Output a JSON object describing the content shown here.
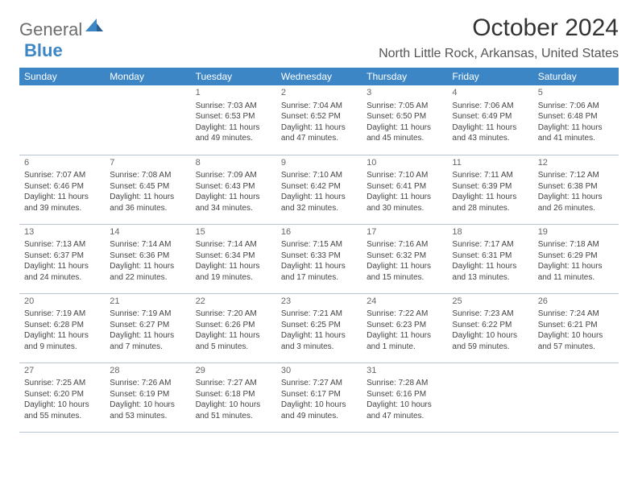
{
  "brand": {
    "part1": "General",
    "part2": "Blue"
  },
  "title": "October 2024",
  "location": "North Little Rock, Arkansas, United States",
  "colors": {
    "header_bg": "#3d86c6",
    "header_text": "#ffffff",
    "border": "#b8c4cf",
    "text": "#444444",
    "logo_gray": "#6d6d6d",
    "logo_blue": "#3d86c6"
  },
  "day_headers": [
    "Sunday",
    "Monday",
    "Tuesday",
    "Wednesday",
    "Thursday",
    "Friday",
    "Saturday"
  ],
  "weeks": [
    [
      null,
      null,
      {
        "n": "1",
        "sr": "7:03 AM",
        "ss": "6:53 PM",
        "dl": "11 hours and 49 minutes."
      },
      {
        "n": "2",
        "sr": "7:04 AM",
        "ss": "6:52 PM",
        "dl": "11 hours and 47 minutes."
      },
      {
        "n": "3",
        "sr": "7:05 AM",
        "ss": "6:50 PM",
        "dl": "11 hours and 45 minutes."
      },
      {
        "n": "4",
        "sr": "7:06 AM",
        "ss": "6:49 PM",
        "dl": "11 hours and 43 minutes."
      },
      {
        "n": "5",
        "sr": "7:06 AM",
        "ss": "6:48 PM",
        "dl": "11 hours and 41 minutes."
      }
    ],
    [
      {
        "n": "6",
        "sr": "7:07 AM",
        "ss": "6:46 PM",
        "dl": "11 hours and 39 minutes."
      },
      {
        "n": "7",
        "sr": "7:08 AM",
        "ss": "6:45 PM",
        "dl": "11 hours and 36 minutes."
      },
      {
        "n": "8",
        "sr": "7:09 AM",
        "ss": "6:43 PM",
        "dl": "11 hours and 34 minutes."
      },
      {
        "n": "9",
        "sr": "7:10 AM",
        "ss": "6:42 PM",
        "dl": "11 hours and 32 minutes."
      },
      {
        "n": "10",
        "sr": "7:10 AM",
        "ss": "6:41 PM",
        "dl": "11 hours and 30 minutes."
      },
      {
        "n": "11",
        "sr": "7:11 AM",
        "ss": "6:39 PM",
        "dl": "11 hours and 28 minutes."
      },
      {
        "n": "12",
        "sr": "7:12 AM",
        "ss": "6:38 PM",
        "dl": "11 hours and 26 minutes."
      }
    ],
    [
      {
        "n": "13",
        "sr": "7:13 AM",
        "ss": "6:37 PM",
        "dl": "11 hours and 24 minutes."
      },
      {
        "n": "14",
        "sr": "7:14 AM",
        "ss": "6:36 PM",
        "dl": "11 hours and 22 minutes."
      },
      {
        "n": "15",
        "sr": "7:14 AM",
        "ss": "6:34 PM",
        "dl": "11 hours and 19 minutes."
      },
      {
        "n": "16",
        "sr": "7:15 AM",
        "ss": "6:33 PM",
        "dl": "11 hours and 17 minutes."
      },
      {
        "n": "17",
        "sr": "7:16 AM",
        "ss": "6:32 PM",
        "dl": "11 hours and 15 minutes."
      },
      {
        "n": "18",
        "sr": "7:17 AM",
        "ss": "6:31 PM",
        "dl": "11 hours and 13 minutes."
      },
      {
        "n": "19",
        "sr": "7:18 AM",
        "ss": "6:29 PM",
        "dl": "11 hours and 11 minutes."
      }
    ],
    [
      {
        "n": "20",
        "sr": "7:19 AM",
        "ss": "6:28 PM",
        "dl": "11 hours and 9 minutes."
      },
      {
        "n": "21",
        "sr": "7:19 AM",
        "ss": "6:27 PM",
        "dl": "11 hours and 7 minutes."
      },
      {
        "n": "22",
        "sr": "7:20 AM",
        "ss": "6:26 PM",
        "dl": "11 hours and 5 minutes."
      },
      {
        "n": "23",
        "sr": "7:21 AM",
        "ss": "6:25 PM",
        "dl": "11 hours and 3 minutes."
      },
      {
        "n": "24",
        "sr": "7:22 AM",
        "ss": "6:23 PM",
        "dl": "11 hours and 1 minute."
      },
      {
        "n": "25",
        "sr": "7:23 AM",
        "ss": "6:22 PM",
        "dl": "10 hours and 59 minutes."
      },
      {
        "n": "26",
        "sr": "7:24 AM",
        "ss": "6:21 PM",
        "dl": "10 hours and 57 minutes."
      }
    ],
    [
      {
        "n": "27",
        "sr": "7:25 AM",
        "ss": "6:20 PM",
        "dl": "10 hours and 55 minutes."
      },
      {
        "n": "28",
        "sr": "7:26 AM",
        "ss": "6:19 PM",
        "dl": "10 hours and 53 minutes."
      },
      {
        "n": "29",
        "sr": "7:27 AM",
        "ss": "6:18 PM",
        "dl": "10 hours and 51 minutes."
      },
      {
        "n": "30",
        "sr": "7:27 AM",
        "ss": "6:17 PM",
        "dl": "10 hours and 49 minutes."
      },
      {
        "n": "31",
        "sr": "7:28 AM",
        "ss": "6:16 PM",
        "dl": "10 hours and 47 minutes."
      },
      null,
      null
    ]
  ]
}
